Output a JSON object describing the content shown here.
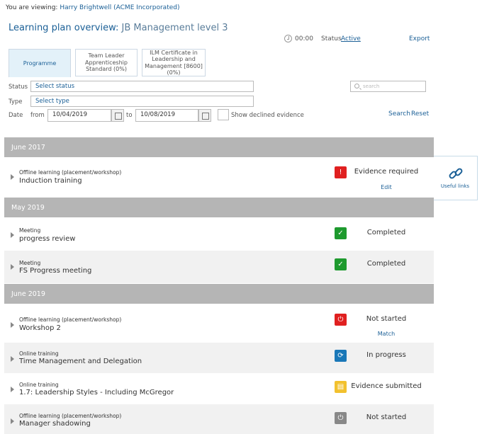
{
  "viewing": {
    "prefix": "You are viewing:",
    "user": "Harry Brightwell (ACME Incorporated)"
  },
  "page": {
    "title": "Learning plan overview:",
    "subtitle": "JB Management level 3"
  },
  "meta": {
    "timer": "00:00",
    "status_label": "Status",
    "status_value": "Active",
    "export": "Export"
  },
  "tabs": [
    {
      "label": "Programme"
    },
    {
      "label": "Team Leader Apprenticeship Standard (0%)"
    },
    {
      "label": "ILM Certificate in Leadership and Management [8600] (0%)"
    }
  ],
  "filters": {
    "status_label": "Status",
    "status_value": "Select status",
    "type_label": "Type",
    "type_value": "Select type",
    "date_label": "Date",
    "from_label": "from",
    "from_value": "10/04/2019",
    "to_label": "to",
    "to_value": "10/08/2019",
    "show_declined": "Show declined evidence",
    "search_placeholder": "search",
    "search_link": "Search",
    "reset_link": "Reset"
  },
  "groups": [
    {
      "label": "June 2017",
      "items": [
        {
          "category": "Offline learning (placement/workshop)",
          "name": "Induction training",
          "status": "Evidence required",
          "action": "Edit",
          "icon": "alert-icon",
          "icon_color": "#e02020"
        }
      ]
    },
    {
      "label": "May 2019",
      "items": [
        {
          "category": "Meeting",
          "name": "progress review",
          "status": "Completed",
          "icon": "check-icon",
          "icon_color": "#1e9a2e"
        },
        {
          "category": "Meeting",
          "name": "FS Progress meeting",
          "status": "Completed",
          "icon": "check-icon",
          "icon_color": "#1e9a2e"
        }
      ]
    },
    {
      "label": "June 2019",
      "items": [
        {
          "category": "Offline learning (placement/workshop)",
          "name": "Workshop 2",
          "status": "Not started",
          "action": "Match",
          "icon": "power-icon",
          "icon_color": "#e02020"
        },
        {
          "category": "Online training",
          "name": "Time Management and Delegation",
          "status": "In progress",
          "icon": "spinner-icon",
          "icon_color": "#1a78b8"
        },
        {
          "category": "Online training",
          "name": "1.7: Leadership Styles - Including McGregor",
          "status": "Evidence submitted",
          "icon": "document-icon",
          "icon_color": "#f2c12e"
        },
        {
          "category": "Offline learning (placement/workshop)",
          "name": "Manager shadowing",
          "status": "Not started",
          "icon": "power-icon",
          "icon_color": "#888888"
        }
      ]
    }
  ],
  "useful_links": {
    "label": "Useful links",
    "icon": "link-icon"
  }
}
